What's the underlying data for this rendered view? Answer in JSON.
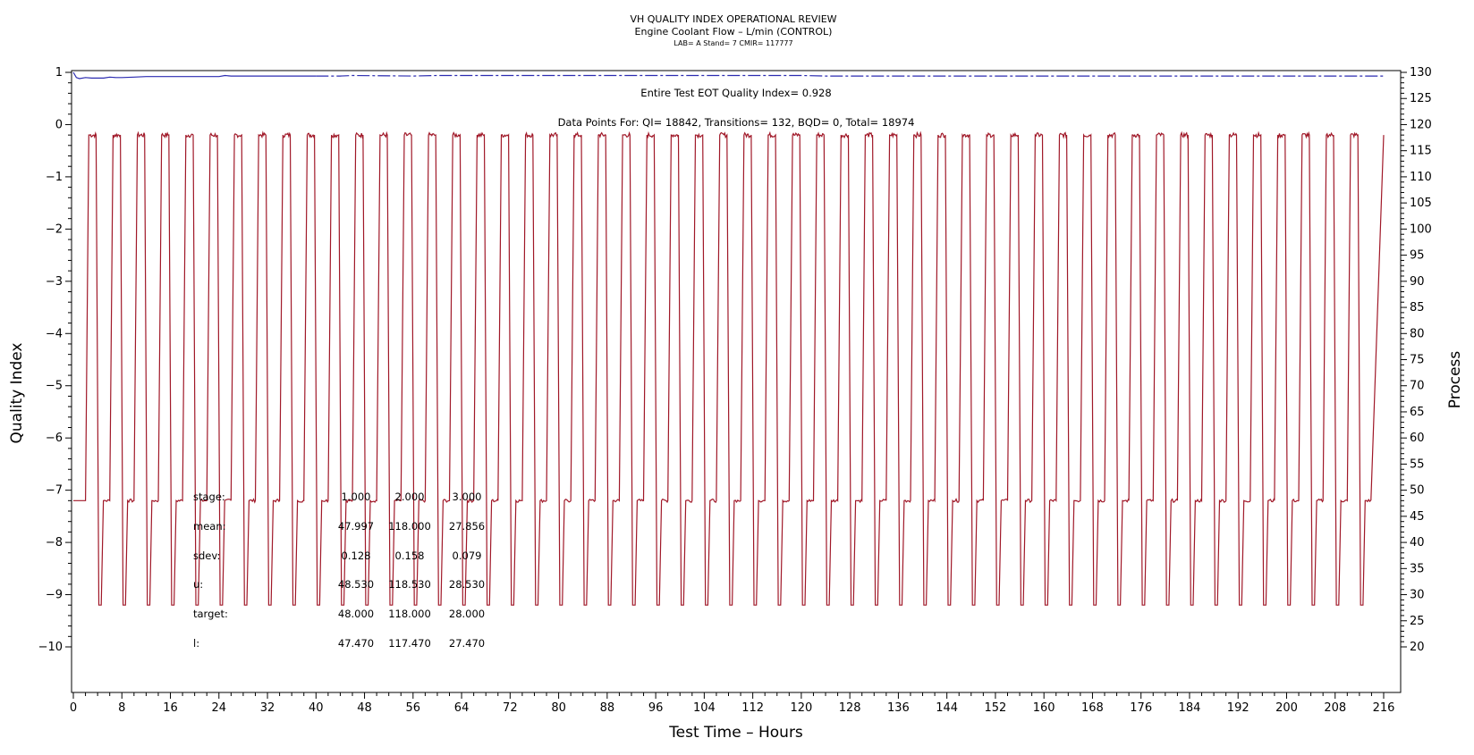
{
  "chart_data": {
    "type": "line",
    "title": "VH QUALITY INDEX OPERATIONAL REVIEW",
    "subtitle": "Engine Coolant Flow – L/min (CONTROL)",
    "subtitle2": "LAB= A Stand= 7 CMIR= 117777",
    "xlabel": "Test Time – Hours",
    "ylabel_left": "Quality Index",
    "ylabel_right": "Process",
    "xlim": [
      0,
      216
    ],
    "ylim_left": [
      -10,
      1
    ],
    "ylim_right": [
      20,
      130
    ],
    "x_ticks": [
      "0",
      "8",
      "16",
      "24",
      "32",
      "40",
      "48",
      "56",
      "64",
      "72",
      "80",
      "88",
      "96",
      "104",
      "112",
      "120",
      "128",
      "136",
      "144",
      "152",
      "160",
      "168",
      "176",
      "184",
      "192",
      "200",
      "208",
      "216"
    ],
    "y_left_ticks": [
      "1",
      "0",
      "−1",
      "−2",
      "−3",
      "−4",
      "−5",
      "−6",
      "−7",
      "−8",
      "−9",
      "−10"
    ],
    "y_right_ticks": [
      "130",
      "125",
      "120",
      "115",
      "110",
      "105",
      "100",
      "95",
      "90",
      "85",
      "80",
      "75",
      "70",
      "65",
      "60",
      "55",
      "50",
      "45",
      "40",
      "35",
      "30",
      "25",
      "20"
    ],
    "grid": false,
    "annotations": {
      "eot_quality_index": "Entire Test EOT Quality Index=   0.928",
      "data_points": "Data Points For: QI= 18842, Transitions=   132, BQD=     0, Total= 18974"
    },
    "stats_table": {
      "rows": [
        {
          "label": "stage:",
          "values": [
            "1.000",
            "2.000",
            "3.000"
          ]
        },
        {
          "label": "mean:",
          "values": [
            "47.997",
            "118.000",
            "27.856"
          ]
        },
        {
          "label": "sdev:",
          "values": [
            "0.128",
            "0.158",
            "0.079"
          ]
        },
        {
          "label": "u:",
          "values": [
            "48.530",
            "118.530",
            "28.530"
          ]
        },
        {
          "label": "target:",
          "values": [
            "48.000",
            "118.000",
            "28.000"
          ]
        },
        {
          "label": "l:",
          "values": [
            "47.470",
            "117.470",
            "27.470"
          ]
        }
      ]
    },
    "series": [
      {
        "axis": "left",
        "color": "#2b2bb0",
        "style": "line-then-dashdot",
        "points": [
          [
            0,
            1.0
          ],
          [
            0.5,
            0.9
          ],
          [
            1,
            0.88
          ],
          [
            2,
            0.9
          ],
          [
            3,
            0.89
          ],
          [
            5,
            0.89
          ],
          [
            6,
            0.91
          ],
          [
            7,
            0.9
          ],
          [
            8,
            0.9
          ],
          [
            10,
            0.91
          ],
          [
            12,
            0.92
          ],
          [
            16,
            0.92
          ],
          [
            20,
            0.92
          ],
          [
            24,
            0.92
          ],
          [
            25,
            0.94
          ],
          [
            26,
            0.93
          ],
          [
            30,
            0.93
          ],
          [
            36,
            0.93
          ],
          [
            40,
            0.93
          ],
          [
            44,
            0.93
          ],
          [
            46,
            0.94
          ],
          [
            56,
            0.93
          ],
          [
            60,
            0.94
          ],
          [
            72,
            0.94
          ],
          [
            96,
            0.94
          ],
          [
            120,
            0.94
          ],
          [
            124,
            0.93
          ],
          [
            128,
            0.93
          ],
          [
            144,
            0.93
          ],
          [
            168,
            0.93
          ],
          [
            192,
            0.93
          ],
          [
            216,
            0.93
          ]
        ],
        "solid_until": 40
      },
      {
        "axis": "right",
        "color": "#a01828",
        "style": "line",
        "period_hours": 4,
        "cycle_start_hours": 2,
        "cycles": 53,
        "levels": {
          "stage1": 48.0,
          "stage2": 118.0,
          "stage3": 28.0
        },
        "initial_level": 48.0
      }
    ]
  }
}
